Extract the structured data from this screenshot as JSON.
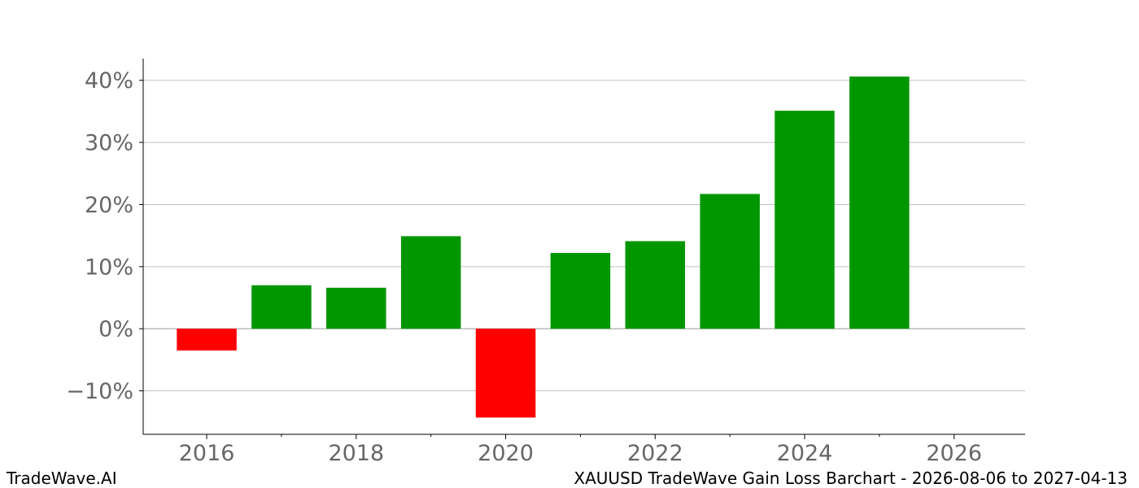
{
  "footer": {
    "brand": "TradeWave.AI",
    "caption": "XAUUSD TradeWave Gain Loss Barchart - 2026-08-06 to 2027-04-13"
  },
  "colors": {
    "gain": "#009600",
    "loss": "#ff0000",
    "grid": "#c0c0c0",
    "tick_text": "#666666"
  },
  "chart_data": {
    "type": "bar",
    "x": [
      2016,
      2017,
      2018,
      2019,
      2020,
      2021,
      2022,
      2023,
      2024,
      2025
    ],
    "values": [
      -3.5,
      7.0,
      6.6,
      14.9,
      -14.3,
      12.2,
      14.1,
      21.7,
      35.1,
      40.6
    ],
    "unit": "%",
    "xlim": [
      2015.15,
      2026.95
    ],
    "ylim": [
      -17,
      43.5
    ],
    "xticks_major": [
      2016,
      2018,
      2020,
      2022,
      2024,
      2026
    ],
    "xticks_minor": [
      2017,
      2019,
      2021,
      2023,
      2025
    ],
    "yticks": [
      -10,
      0,
      10,
      20,
      30,
      40
    ],
    "ytick_labels": [
      "−10%",
      "0%",
      "10%",
      "20%",
      "30%",
      "40%"
    ],
    "grid": "horizontal",
    "legend": "none"
  }
}
